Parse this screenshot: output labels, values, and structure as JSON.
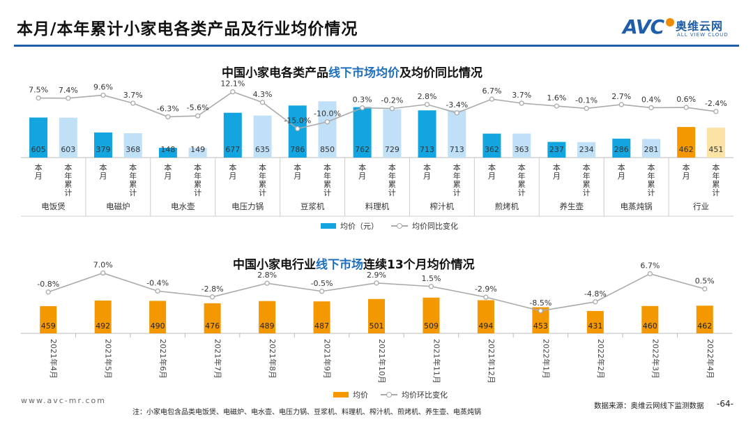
{
  "page": {
    "title": "本月/本年累计小家电各类产品及行业均价情况"
  },
  "logo": {
    "brand": "AVC",
    "cn_name": "奥维云网",
    "en_name": "ALL VIEW CLOUD"
  },
  "chart1": {
    "title_part1": "中国小家电各类产品",
    "title_highlight": "线下市场均价",
    "title_part2": "及均价同比情况",
    "legend_bar": "均价（元）",
    "legend_line": "均价同比变化"
  },
  "chart2": {
    "title_part1": "中国小家电行业",
    "title_highlight": "线下市场",
    "title_part2": "连续13个月均价情况",
    "legend_bar": "均价",
    "legend_line": "均价环比变化"
  },
  "footer": {
    "url": "www.avc-mr.com",
    "note": "注：小家电包含品类电饭煲、电磁炉、电水壶、电压力锅、豆浆机、料理机、榨汁机、煎烤机、养生壶、电蒸炖锅",
    "source": "数据来源：奥维云网线下监测数据",
    "page_number": "-64-"
  },
  "colors": {
    "month_bar": "#12a5e0",
    "ytd_bar": "#bfe0f7",
    "industry_month_bar": "#f39800",
    "industry_ytd_bar": "#fde2a6",
    "trend_bar": "#f39800",
    "line": "#aaaaaa",
    "title_rule": "#1f5faa",
    "highlight_text": "#1f6fbf"
  },
  "chart_data": [
    {
      "type": "bar",
      "title": "中国小家电各类产品线下市场均价及均价同比情况",
      "categories": [
        "电饭煲",
        "电磁炉",
        "电水壶",
        "电压力锅",
        "豆浆机",
        "料理机",
        "榨汁机",
        "煎烤机",
        "养生壶",
        "电蒸炖锅",
        "行业"
      ],
      "sub_categories": [
        "本月",
        "本年累计"
      ],
      "series": [
        {
          "name": "均价（元）- 本月",
          "values": [
            605,
            379,
            148,
            677,
            786,
            762,
            713,
            362,
            237,
            286,
            462
          ]
        },
        {
          "name": "均价（元）- 本年累计",
          "values": [
            603,
            368,
            149,
            635,
            850,
            729,
            713,
            363,
            234,
            281,
            451
          ]
        },
        {
          "name": "均价同比变化 - 本月",
          "values": [
            "7.5%",
            "9.6%",
            "-6.3%",
            "12.1%",
            "-15.0%",
            "0.3%",
            "2.8%",
            "6.7%",
            "1.6%",
            "2.7%",
            "0.6%"
          ]
        },
        {
          "name": "均价同比变化 - 本年累计",
          "values": [
            "7.4%",
            "3.7%",
            "-5.6%",
            "4.3%",
            "-10.0%",
            "-0.2%",
            "-3.4%",
            "3.7%",
            "-0.1%",
            "0.4%",
            "-2.4%"
          ]
        }
      ],
      "ylim": [
        0,
        1000
      ],
      "line_ylim": [
        -25,
        16
      ],
      "xlabel": "",
      "ylabel": ""
    },
    {
      "type": "bar",
      "title": "中国小家电行业线下市场连续13个月均价情况",
      "categories": [
        "2021年4月",
        "2021年5月",
        "2021年6月",
        "2021年7月",
        "2021年8月",
        "2021年9月",
        "2021年10月",
        "2021年11月",
        "2021年12月",
        "2022年1月",
        "2022年2月",
        "2022年3月",
        "2022年4月"
      ],
      "series": [
        {
          "name": "均价",
          "values": [
            459,
            492,
            490,
            476,
            489,
            487,
            501,
            509,
            494,
            453,
            431,
            460,
            462
          ]
        },
        {
          "name": "均价环比变化",
          "values": [
            "-0.8%",
            "7.0%",
            "-0.4%",
            "-2.8%",
            "2.8%",
            "-0.5%",
            "2.9%",
            "1.5%",
            "-2.9%",
            "-8.5%",
            "-4.8%",
            "6.7%",
            "0.5%"
          ]
        }
      ],
      "ylim": [
        0,
        700
      ],
      "line_ylim": [
        -12,
        8
      ],
      "xlabel": "",
      "ylabel": ""
    }
  ]
}
